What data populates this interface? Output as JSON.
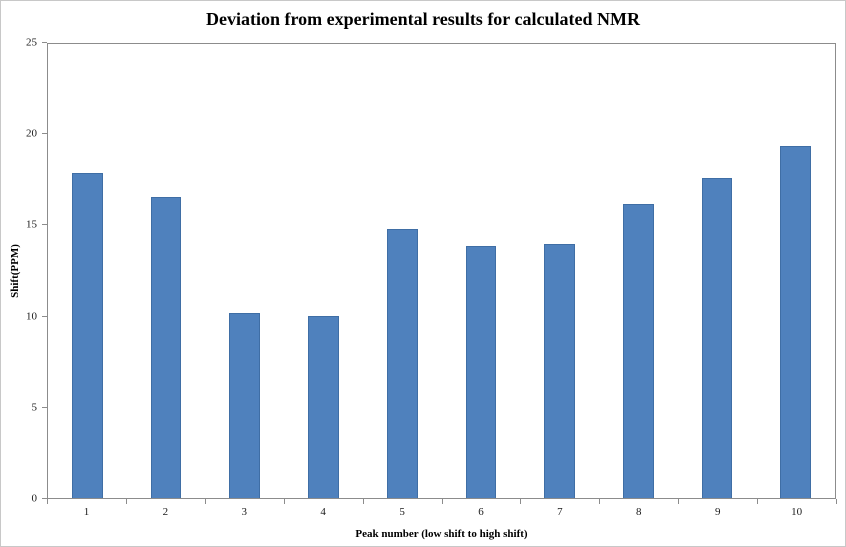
{
  "chart_data": {
    "type": "bar",
    "title": "Deviation from experimental results for calculated NMR",
    "categories": [
      "1",
      "2",
      "3",
      "4",
      "5",
      "6",
      "7",
      "8",
      "9",
      "10"
    ],
    "values": [
      17.9,
      16.6,
      10.2,
      10.0,
      14.8,
      13.9,
      14.0,
      16.2,
      17.6,
      19.4
    ],
    "xlabel": "Peak number (low shift to high shift)",
    "ylabel": "Shift(PPM)",
    "ylim": [
      0,
      25
    ],
    "yticks": [
      0,
      5,
      10,
      15,
      20,
      25
    ],
    "grid": "off",
    "legend": "none",
    "bar_color": "#4f81bd",
    "bar_border_color": "#3f6ea5"
  }
}
